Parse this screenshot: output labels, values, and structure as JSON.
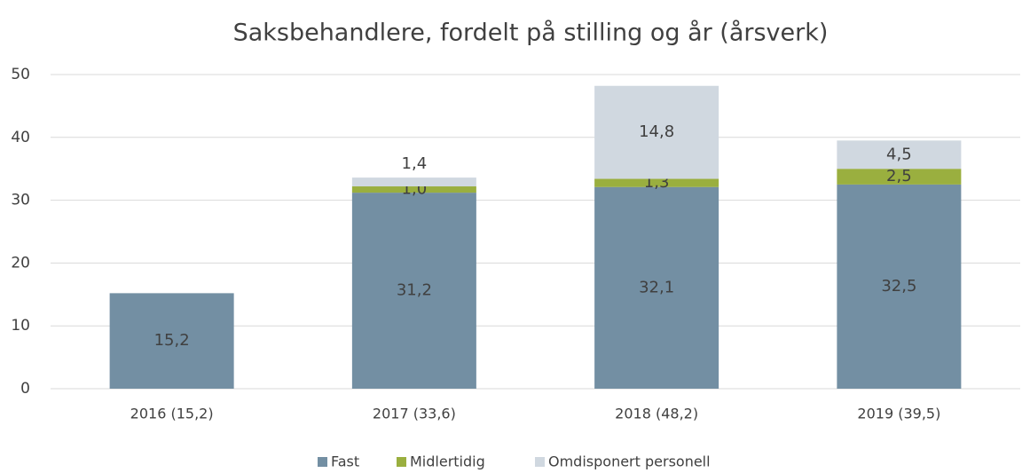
{
  "chart_data": {
    "type": "stacked_bar",
    "title": "Saksbehandlere, fordelt på stilling og år (årsverk)",
    "categories": [
      "2016 (15,2)",
      "2017 (33,6)",
      "2018 (48,2)",
      "2019 (39,5)"
    ],
    "series": [
      {
        "name": "Fast",
        "color": "#738fa3",
        "values": [
          15.2,
          31.2,
          32.1,
          32.5
        ],
        "value_labels": [
          "15,2",
          "31,2",
          "32,1",
          "32,5"
        ]
      },
      {
        "name": "Midlertidig",
        "color": "#9aaf3f",
        "values": [
          null,
          1.0,
          1.3,
          2.5
        ],
        "value_labels": [
          null,
          "1,0",
          "1,3",
          "2,5"
        ]
      },
      {
        "name": "Omdisponert personell",
        "color": "#d0d8e0",
        "values": [
          null,
          1.4,
          14.8,
          4.5
        ],
        "value_labels": [
          null,
          "1,4",
          "14,8",
          "4,5"
        ]
      }
    ],
    "ylim": [
      0,
      50
    ],
    "yticks": [
      0,
      10,
      20,
      30,
      40,
      50
    ],
    "grid": true,
    "legend": "bottom"
  }
}
